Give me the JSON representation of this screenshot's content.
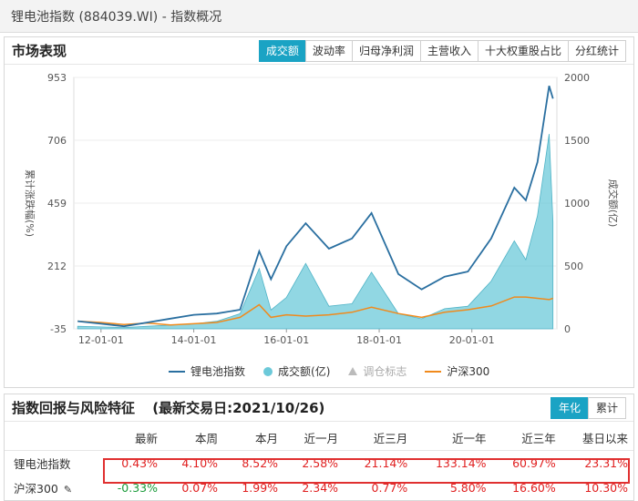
{
  "window": {
    "title": "锂电池指数 (884039.WI) - 指数概况"
  },
  "market": {
    "title": "市场表现",
    "tabs": [
      {
        "label": "成交额",
        "active": true
      },
      {
        "label": "波动率",
        "active": false
      },
      {
        "label": "归母净利润",
        "active": false
      },
      {
        "label": "主营收入",
        "active": false
      },
      {
        "label": "十大权重股占比",
        "active": false
      },
      {
        "label": "分红统计",
        "active": false
      }
    ]
  },
  "chart_data": {
    "type": "line",
    "ylabel": "累计涨跌幅(%)",
    "y2label": "成交额(亿)",
    "y_ticks": [
      953,
      706,
      459,
      212,
      -35
    ],
    "y2_ticks": [
      2000,
      1500,
      1000,
      500,
      0
    ],
    "ylim": [
      -35,
      953
    ],
    "y2lim": [
      0,
      2000
    ],
    "x_ticks": [
      "12-01-01",
      "14-01-01",
      "16-01-01",
      "18-01-01",
      "20-01-01"
    ],
    "series": [
      {
        "name": "锂电池指数",
        "color": "#2a6fa0",
        "x": [
          "2011-07",
          "2012-01",
          "2012-07",
          "2013-01",
          "2013-07",
          "2014-01",
          "2014-07",
          "2015-01",
          "2015-06",
          "2015-09",
          "2016-01",
          "2016-06",
          "2016-12",
          "2017-06",
          "2017-11",
          "2018-06",
          "2018-12",
          "2019-06",
          "2019-12",
          "2020-06",
          "2020-12",
          "2021-03",
          "2021-06",
          "2021-09",
          "2021-10"
        ],
        "values": [
          -5,
          -15,
          -25,
          -10,
          5,
          20,
          25,
          40,
          270,
          160,
          290,
          380,
          280,
          320,
          420,
          180,
          120,
          170,
          190,
          320,
          520,
          470,
          620,
          920,
          870
        ]
      },
      {
        "name": "成交额(亿)",
        "color": "#6cc9d9",
        "x": [
          "2011-07",
          "2012-01",
          "2012-07",
          "2013-01",
          "2013-07",
          "2014-01",
          "2014-07",
          "2015-01",
          "2015-06",
          "2015-09",
          "2016-01",
          "2016-06",
          "2016-12",
          "2017-06",
          "2017-11",
          "2018-06",
          "2018-12",
          "2019-06",
          "2019-12",
          "2020-06",
          "2020-12",
          "2021-03",
          "2021-06",
          "2021-09",
          "2021-10"
        ],
        "values": [
          20,
          15,
          10,
          20,
          30,
          40,
          60,
          120,
          480,
          150,
          250,
          520,
          180,
          200,
          450,
          120,
          80,
          160,
          180,
          380,
          700,
          550,
          900,
          1550,
          850
        ]
      },
      {
        "name": "调仓标志",
        "color": "#bbbbbb"
      },
      {
        "name": "沪深300",
        "color": "#f08a1c",
        "x": [
          "2011-07",
          "2012-01",
          "2012-07",
          "2013-01",
          "2013-07",
          "2014-01",
          "2014-07",
          "2015-01",
          "2015-06",
          "2015-09",
          "2016-01",
          "2016-06",
          "2016-12",
          "2017-06",
          "2017-11",
          "2018-06",
          "2018-12",
          "2019-06",
          "2019-12",
          "2020-06",
          "2020-12",
          "2021-03",
          "2021-06",
          "2021-09",
          "2021-10"
        ],
        "values": [
          -5,
          -10,
          -18,
          -12,
          -20,
          -15,
          -10,
          10,
          60,
          10,
          20,
          15,
          20,
          30,
          50,
          25,
          10,
          30,
          40,
          55,
          90,
          90,
          85,
          80,
          85
        ]
      }
    ]
  },
  "perf": {
    "title": "指数回报与风险特征",
    "subtitle": "(最新交易日:2021/10/26)",
    "toggle": [
      {
        "label": "年化",
        "active": true
      },
      {
        "label": "累计",
        "active": false
      }
    ],
    "columns": [
      "最新",
      "本周",
      "本月",
      "近一月",
      "近三月",
      "近一年",
      "近三年",
      "基日以来"
    ],
    "rows": [
      {
        "name": "锂电池指数",
        "values": [
          "0.43%",
          "4.10%",
          "8.52%",
          "2.58%",
          "21.14%",
          "133.14%",
          "60.97%",
          "23.31%"
        ],
        "colors": [
          "red",
          "red",
          "red",
          "red",
          "red",
          "red",
          "red",
          "red"
        ]
      },
      {
        "name": "沪深300",
        "values": [
          "-0.33%",
          "0.07%",
          "1.99%",
          "2.34%",
          "0.77%",
          "5.80%",
          "16.60%",
          "10.30%"
        ],
        "colors": [
          "green",
          "red",
          "red",
          "red",
          "red",
          "red",
          "red",
          "red"
        ]
      }
    ]
  }
}
